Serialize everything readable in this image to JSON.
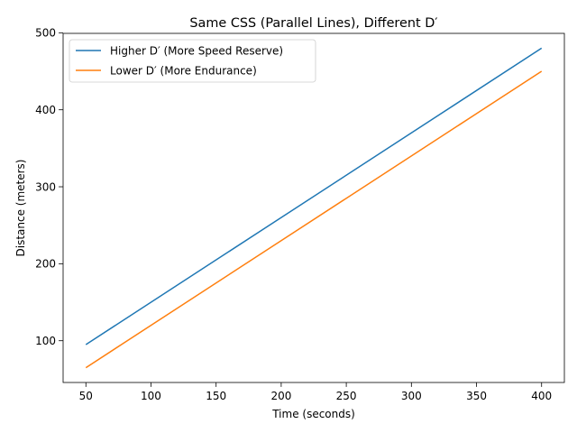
{
  "chart_data": {
    "type": "line",
    "title": "Same CSS (Parallel Lines), Different D′",
    "xlabel": "Time (seconds)",
    "ylabel": "Distance (meters)",
    "xlim": [
      32.5,
      417.5
    ],
    "ylim": [
      45.75,
      499.25
    ],
    "xticks": [
      50,
      100,
      150,
      200,
      250,
      300,
      350,
      400
    ],
    "yticks": [
      100,
      200,
      300,
      400,
      500
    ],
    "grid": false,
    "legend_position": "upper-left",
    "series": [
      {
        "name": "Higher D′ (More Speed Reserve)",
        "color": "#1f77b4",
        "x": [
          50,
          400
        ],
        "y": [
          95,
          480
        ]
      },
      {
        "name": "Lower D′ (More Endurance)",
        "color": "#ff7f0e",
        "x": [
          50,
          400
        ],
        "y": [
          65,
          450
        ]
      }
    ]
  }
}
